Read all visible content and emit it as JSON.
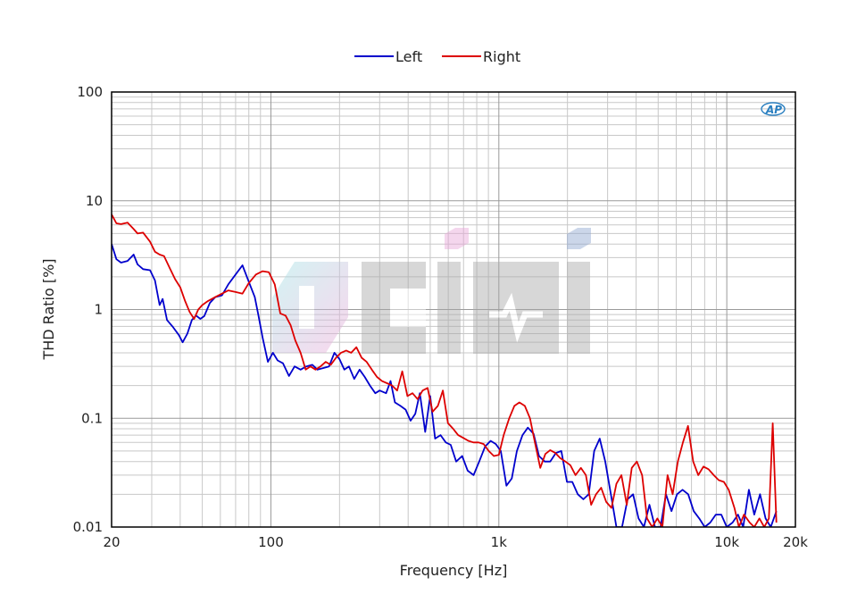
{
  "chart_data": {
    "type": "line",
    "title": "",
    "xlabel": "Frequency [Hz]",
    "ylabel": "THD Ratio [%]",
    "xscale": "log",
    "yscale": "log",
    "xlim": [
      20,
      20000
    ],
    "ylim": [
      0.01,
      100
    ],
    "grid": true,
    "legend": "top-center",
    "x_ticks": [
      {
        "value": 20,
        "label": "20"
      },
      {
        "value": 100,
        "label": "100"
      },
      {
        "value": 1000,
        "label": "1k"
      },
      {
        "value": 10000,
        "label": "10k"
      },
      {
        "value": 20000,
        "label": "20k"
      }
    ],
    "y_ticks": [
      {
        "value": 0.01,
        "label": "0.01"
      },
      {
        "value": 0.1,
        "label": "0.1"
      },
      {
        "value": 1,
        "label": "1"
      },
      {
        "value": 10,
        "label": "10"
      },
      {
        "value": 100,
        "label": "100"
      }
    ],
    "series": [
      {
        "name": "Left",
        "color": "#0000cc",
        "points": [
          [
            20,
            4.0
          ],
          [
            21,
            2.9
          ],
          [
            22,
            2.7
          ],
          [
            23.5,
            2.8
          ],
          [
            25,
            3.2
          ],
          [
            26,
            2.6
          ],
          [
            27.5,
            2.35
          ],
          [
            29.5,
            2.3
          ],
          [
            31,
            1.85
          ],
          [
            32.5,
            1.1
          ],
          [
            33.5,
            1.25
          ],
          [
            35,
            0.8
          ],
          [
            37,
            0.7
          ],
          [
            39.5,
            0.58
          ],
          [
            41,
            0.5
          ],
          [
            43,
            0.6
          ],
          [
            45,
            0.8
          ],
          [
            47,
            0.88
          ],
          [
            49,
            0.82
          ],
          [
            51,
            0.87
          ],
          [
            54,
            1.15
          ],
          [
            57,
            1.3
          ],
          [
            61,
            1.35
          ],
          [
            65,
            1.7
          ],
          [
            70,
            2.1
          ],
          [
            75,
            2.55
          ],
          [
            80,
            1.8
          ],
          [
            85,
            1.3
          ],
          [
            88,
            0.9
          ],
          [
            92,
            0.55
          ],
          [
            97,
            0.33
          ],
          [
            102,
            0.4
          ],
          [
            107,
            0.34
          ],
          [
            113,
            0.32
          ],
          [
            120,
            0.245
          ],
          [
            127,
            0.3
          ],
          [
            135,
            0.28
          ],
          [
            143,
            0.3
          ],
          [
            152,
            0.31
          ],
          [
            160,
            0.28
          ],
          [
            170,
            0.29
          ],
          [
            180,
            0.3
          ],
          [
            190,
            0.4
          ],
          [
            200,
            0.35
          ],
          [
            210,
            0.28
          ],
          [
            220,
            0.3
          ],
          [
            232,
            0.23
          ],
          [
            245,
            0.28
          ],
          [
            258,
            0.24
          ],
          [
            272,
            0.2
          ],
          [
            287,
            0.17
          ],
          [
            300,
            0.18
          ],
          [
            320,
            0.17
          ],
          [
            335,
            0.22
          ],
          [
            350,
            0.14
          ],
          [
            370,
            0.13
          ],
          [
            390,
            0.12
          ],
          [
            410,
            0.095
          ],
          [
            430,
            0.11
          ],
          [
            450,
            0.17
          ],
          [
            475,
            0.075
          ],
          [
            500,
            0.16
          ],
          [
            525,
            0.065
          ],
          [
            555,
            0.07
          ],
          [
            585,
            0.06
          ],
          [
            615,
            0.057
          ],
          [
            650,
            0.04
          ],
          [
            690,
            0.045
          ],
          [
            730,
            0.033
          ],
          [
            775,
            0.03
          ],
          [
            820,
            0.04
          ],
          [
            870,
            0.055
          ],
          [
            920,
            0.062
          ],
          [
            970,
            0.058
          ],
          [
            1020,
            0.05
          ],
          [
            1080,
            0.024
          ],
          [
            1140,
            0.028
          ],
          [
            1200,
            0.05
          ],
          [
            1270,
            0.07
          ],
          [
            1340,
            0.082
          ],
          [
            1420,
            0.072
          ],
          [
            1500,
            0.045
          ],
          [
            1590,
            0.04
          ],
          [
            1680,
            0.04
          ],
          [
            1780,
            0.048
          ],
          [
            1880,
            0.05
          ],
          [
            1990,
            0.026
          ],
          [
            2100,
            0.026
          ],
          [
            2220,
            0.02
          ],
          [
            2350,
            0.018
          ],
          [
            2480,
            0.02
          ],
          [
            2620,
            0.05
          ],
          [
            2770,
            0.065
          ],
          [
            2930,
            0.04
          ],
          [
            3100,
            0.02
          ],
          [
            3280,
            0.01
          ],
          [
            3470,
            0.01
          ],
          [
            3670,
            0.018
          ],
          [
            3880,
            0.02
          ],
          [
            4100,
            0.012
          ],
          [
            4330,
            0.01
          ],
          [
            4580,
            0.016
          ],
          [
            4840,
            0.01
          ],
          [
            5120,
            0.01
          ],
          [
            5410,
            0.02
          ],
          [
            5720,
            0.014
          ],
          [
            6050,
            0.02
          ],
          [
            6400,
            0.022
          ],
          [
            6770,
            0.02
          ],
          [
            7160,
            0.014
          ],
          [
            7570,
            0.012
          ],
          [
            8000,
            0.01
          ],
          [
            8460,
            0.011
          ],
          [
            8950,
            0.013
          ],
          [
            9460,
            0.013
          ],
          [
            10000,
            0.01
          ],
          [
            10600,
            0.011
          ],
          [
            11200,
            0.013
          ],
          [
            11800,
            0.01
          ],
          [
            12500,
            0.022
          ],
          [
            13200,
            0.013
          ],
          [
            14000,
            0.02
          ],
          [
            14800,
            0.012
          ],
          [
            15600,
            0.01
          ],
          [
            16500,
            0.014
          ]
        ]
      },
      {
        "name": "Right",
        "color": "#dd0000",
        "points": [
          [
            20,
            7.5
          ],
          [
            21,
            6.2
          ],
          [
            22,
            6.1
          ],
          [
            23.5,
            6.3
          ],
          [
            25,
            5.5
          ],
          [
            26,
            5.0
          ],
          [
            27.5,
            5.1
          ],
          [
            29.5,
            4.2
          ],
          [
            31,
            3.4
          ],
          [
            32.5,
            3.2
          ],
          [
            34,
            3.1
          ],
          [
            36,
            2.4
          ],
          [
            38,
            1.9
          ],
          [
            40,
            1.6
          ],
          [
            42,
            1.2
          ],
          [
            44,
            0.95
          ],
          [
            46,
            0.82
          ],
          [
            48,
            1.0
          ],
          [
            50,
            1.1
          ],
          [
            53,
            1.2
          ],
          [
            57,
            1.3
          ],
          [
            61,
            1.4
          ],
          [
            65,
            1.5
          ],
          [
            70,
            1.45
          ],
          [
            75,
            1.4
          ],
          [
            80,
            1.75
          ],
          [
            86,
            2.1
          ],
          [
            92,
            2.25
          ],
          [
            98,
            2.2
          ],
          [
            104,
            1.7
          ],
          [
            110,
            0.92
          ],
          [
            116,
            0.88
          ],
          [
            122,
            0.72
          ],
          [
            128,
            0.52
          ],
          [
            135,
            0.4
          ],
          [
            142,
            0.28
          ],
          [
            149,
            0.3
          ],
          [
            157,
            0.28
          ],
          [
            165,
            0.3
          ],
          [
            174,
            0.33
          ],
          [
            183,
            0.31
          ],
          [
            193,
            0.36
          ],
          [
            203,
            0.4
          ],
          [
            214,
            0.42
          ],
          [
            225,
            0.4
          ],
          [
            237,
            0.45
          ],
          [
            250,
            0.36
          ],
          [
            263,
            0.33
          ],
          [
            277,
            0.28
          ],
          [
            292,
            0.24
          ],
          [
            307,
            0.22
          ],
          [
            323,
            0.21
          ],
          [
            340,
            0.2
          ],
          [
            358,
            0.18
          ],
          [
            377,
            0.27
          ],
          [
            397,
            0.16
          ],
          [
            418,
            0.17
          ],
          [
            440,
            0.15
          ],
          [
            463,
            0.18
          ],
          [
            487,
            0.19
          ],
          [
            512,
            0.115
          ],
          [
            540,
            0.13
          ],
          [
            568,
            0.18
          ],
          [
            598,
            0.09
          ],
          [
            630,
            0.08
          ],
          [
            663,
            0.07
          ],
          [
            698,
            0.066
          ],
          [
            735,
            0.062
          ],
          [
            774,
            0.06
          ],
          [
            815,
            0.06
          ],
          [
            858,
            0.058
          ],
          [
            903,
            0.05
          ],
          [
            951,
            0.045
          ],
          [
            1000,
            0.046
          ],
          [
            1050,
            0.07
          ],
          [
            1110,
            0.1
          ],
          [
            1170,
            0.13
          ],
          [
            1230,
            0.14
          ],
          [
            1300,
            0.13
          ],
          [
            1370,
            0.1
          ],
          [
            1440,
            0.06
          ],
          [
            1520,
            0.035
          ],
          [
            1600,
            0.047
          ],
          [
            1680,
            0.051
          ],
          [
            1770,
            0.048
          ],
          [
            1860,
            0.043
          ],
          [
            1960,
            0.04
          ],
          [
            2060,
            0.037
          ],
          [
            2170,
            0.03
          ],
          [
            2290,
            0.035
          ],
          [
            2410,
            0.03
          ],
          [
            2540,
            0.016
          ],
          [
            2670,
            0.02
          ],
          [
            2810,
            0.023
          ],
          [
            2960,
            0.017
          ],
          [
            3120,
            0.015
          ],
          [
            3280,
            0.025
          ],
          [
            3450,
            0.03
          ],
          [
            3640,
            0.016
          ],
          [
            3830,
            0.035
          ],
          [
            4030,
            0.04
          ],
          [
            4250,
            0.03
          ],
          [
            4470,
            0.012
          ],
          [
            4710,
            0.01
          ],
          [
            4960,
            0.012
          ],
          [
            5220,
            0.01
          ],
          [
            5500,
            0.03
          ],
          [
            5790,
            0.02
          ],
          [
            6100,
            0.04
          ],
          [
            6420,
            0.06
          ],
          [
            6760,
            0.085
          ],
          [
            7120,
            0.04
          ],
          [
            7500,
            0.03
          ],
          [
            7900,
            0.036
          ],
          [
            8320,
            0.034
          ],
          [
            8760,
            0.03
          ],
          [
            9220,
            0.027
          ],
          [
            9710,
            0.026
          ],
          [
            10200,
            0.022
          ],
          [
            10800,
            0.015
          ],
          [
            11300,
            0.01
          ],
          [
            11900,
            0.013
          ],
          [
            12600,
            0.011
          ],
          [
            13200,
            0.01
          ],
          [
            13900,
            0.012
          ],
          [
            14600,
            0.01
          ],
          [
            15300,
            0.012
          ],
          [
            15900,
            0.09
          ],
          [
            16500,
            0.011
          ]
        ]
      }
    ]
  },
  "watermark": {
    "brand_icon": "ap-logo-icon",
    "logo": "cifi-watermark-logo"
  }
}
